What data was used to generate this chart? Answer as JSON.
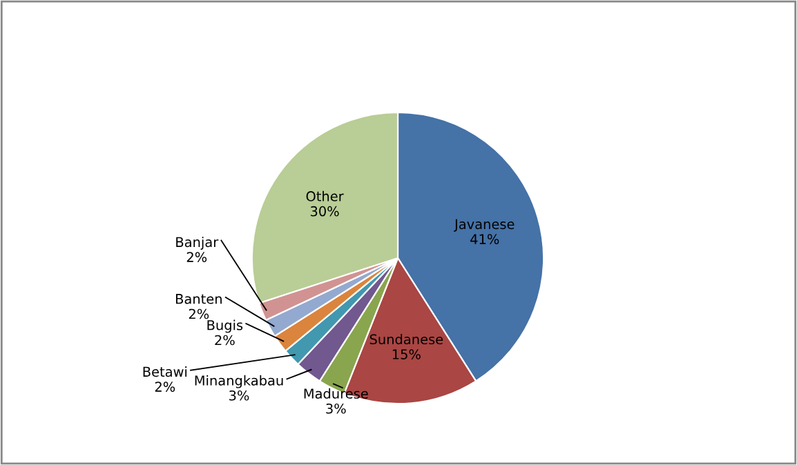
{
  "chart_data": {
    "type": "pie",
    "categories": [
      "Javanese",
      "Sundanese",
      "Madurese",
      "Minangkabau",
      "Betawi",
      "Bugis",
      "Banten",
      "Banjar",
      "Other"
    ],
    "values": [
      41,
      15,
      3,
      3,
      2,
      2,
      2,
      2,
      30
    ],
    "colors": [
      "#4572a7",
      "#aa4643",
      "#89a54e",
      "#71588f",
      "#4198af",
      "#db843d",
      "#93a9cf",
      "#d19392",
      "#b9cd96"
    ],
    "value_labels": [
      "41%",
      "15%",
      "3%",
      "3%",
      "2%",
      "2%",
      "2%",
      "2%",
      "30%"
    ]
  }
}
